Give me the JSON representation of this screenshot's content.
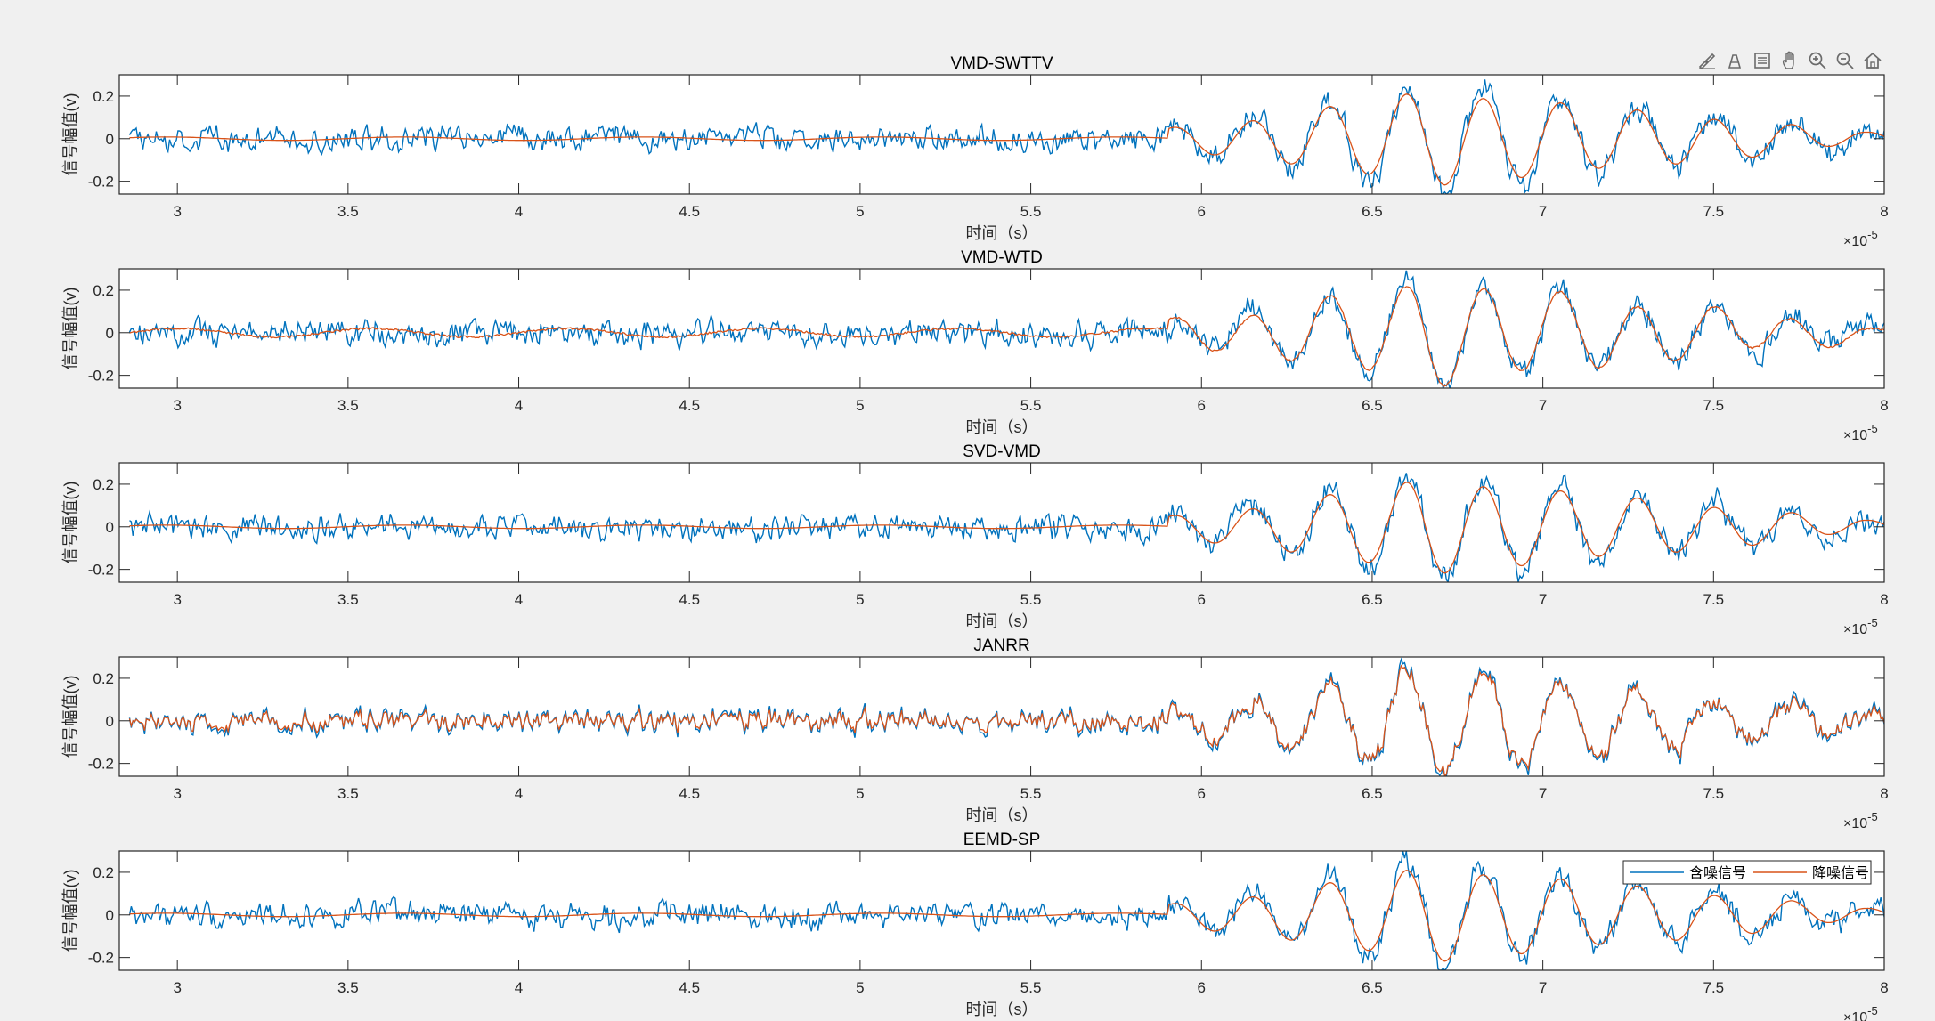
{
  "figure": {
    "background": "#f0f0f0",
    "toolbar": [
      {
        "icon": "brush-icon",
        "tooltip": "Brush"
      },
      {
        "icon": "data-tips-icon",
        "tooltip": "Data Tips"
      },
      {
        "icon": "legend-icon",
        "tooltip": "Legend"
      },
      {
        "icon": "pan-icon",
        "tooltip": "Pan"
      },
      {
        "icon": "zoom-in-icon",
        "tooltip": "Zoom In"
      },
      {
        "icon": "zoom-out-icon",
        "tooltip": "Zoom Out"
      },
      {
        "icon": "home-icon",
        "tooltip": "Restore View"
      }
    ]
  },
  "colors": {
    "noisy": "#0072BD",
    "denoised": "#D95319",
    "axes_bg": "#ffffff",
    "axes_line": "#262626",
    "grid": "#262626"
  },
  "chart_data": [
    {
      "type": "line",
      "title": "VMD-SWTTV",
      "xlabel": "时间（s）",
      "ylabel": "信号幅值(v)",
      "x_exponent": "×10",
      "x_exponent_power": "-5",
      "xlim": [
        2.83,
        8.0
      ],
      "ylim": [
        -0.26,
        0.3
      ],
      "xticks": [
        "3",
        "3.5",
        "4",
        "4.5",
        "5",
        "5.5",
        "6",
        "6.5",
        "7",
        "7.5",
        "8"
      ],
      "yticks": [
        "0.2",
        "0",
        "-0.2"
      ],
      "denoise_mode": "smooth",
      "series": [
        {
          "name": "含噪信号"
        },
        {
          "name": "降噪信号"
        }
      ]
    },
    {
      "type": "line",
      "title": "VMD-WTD",
      "xlabel": "时间（s）",
      "ylabel": "信号幅值(v)",
      "x_exponent": "×10",
      "x_exponent_power": "-5",
      "xlim": [
        2.83,
        8.0
      ],
      "ylim": [
        -0.26,
        0.3
      ],
      "xticks": [
        "3",
        "3.5",
        "4",
        "4.5",
        "5",
        "5.5",
        "6",
        "6.5",
        "7",
        "7.5",
        "8"
      ],
      "yticks": [
        "0.2",
        "0",
        "-0.2"
      ],
      "denoise_mode": "semi",
      "series": [
        {
          "name": "含噪信号"
        },
        {
          "name": "降噪信号"
        }
      ]
    },
    {
      "type": "line",
      "title": "SVD-VMD",
      "xlabel": "时间（s）",
      "ylabel": "信号幅值(v)",
      "x_exponent": "×10",
      "x_exponent_power": "-5",
      "xlim": [
        2.83,
        8.0
      ],
      "ylim": [
        -0.26,
        0.3
      ],
      "xticks": [
        "3",
        "3.5",
        "4",
        "4.5",
        "5",
        "5.5",
        "6",
        "6.5",
        "7",
        "7.5",
        "8"
      ],
      "yticks": [
        "0.2",
        "0",
        "-0.2"
      ],
      "denoise_mode": "smooth",
      "series": [
        {
          "name": "含噪信号"
        },
        {
          "name": "降噪信号"
        }
      ]
    },
    {
      "type": "line",
      "title": "JANRR",
      "xlabel": "时间（s）",
      "ylabel": "信号幅值(v)",
      "x_exponent": "×10",
      "x_exponent_power": "-5",
      "xlim": [
        2.83,
        8.0
      ],
      "ylim": [
        -0.26,
        0.3
      ],
      "xticks": [
        "3",
        "3.5",
        "4",
        "4.5",
        "5",
        "5.5",
        "6",
        "6.5",
        "7",
        "7.5",
        "8"
      ],
      "yticks": [
        "0.2",
        "0",
        "-0.2"
      ],
      "denoise_mode": "noisy",
      "series": [
        {
          "name": "含噪信号"
        },
        {
          "name": "降噪信号"
        }
      ]
    },
    {
      "type": "line",
      "title": "EEMD-SP",
      "xlabel": "时间（s）",
      "ylabel": "信号幅值(v)",
      "x_exponent": "×10",
      "x_exponent_power": "-5",
      "xlim": [
        2.83,
        8.0
      ],
      "ylim": [
        -0.26,
        0.3
      ],
      "xticks": [
        "3",
        "3.5",
        "4",
        "4.5",
        "5",
        "5.5",
        "6",
        "6.5",
        "7",
        "7.5",
        "8"
      ],
      "yticks": [
        "0.2",
        "0",
        "-0.2"
      ],
      "denoise_mode": "smooth",
      "series": [
        {
          "name": "含噪信号"
        },
        {
          "name": "降噪信号"
        }
      ],
      "legend": {
        "placement": "top-right",
        "entries": [
          "含噪信号",
          "降噪信号"
        ]
      }
    }
  ]
}
